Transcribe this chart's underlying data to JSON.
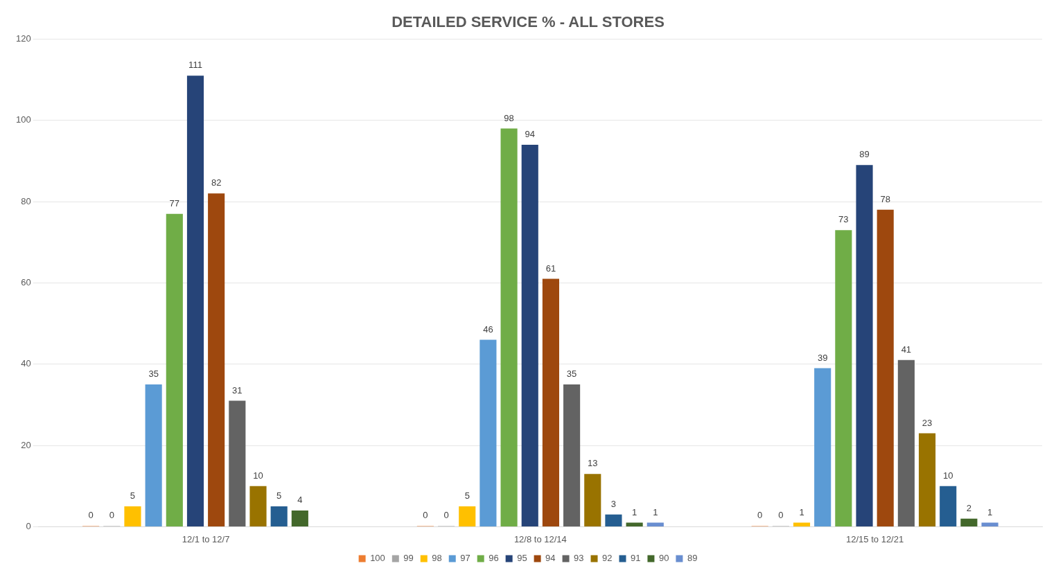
{
  "chart_data": {
    "type": "bar",
    "title": "DETAILED SERVICE % - ALL STORES",
    "categories": [
      "12/1 to 12/7",
      "12/8 to 12/14",
      "12/15 to 12/21"
    ],
    "series": [
      {
        "name": "100",
        "color": "#ed7d31",
        "values": [
          0,
          0,
          0
        ]
      },
      {
        "name": "99",
        "color": "#a5a5a5",
        "values": [
          0,
          0,
          0
        ]
      },
      {
        "name": "98",
        "color": "#ffc000",
        "values": [
          5,
          5,
          1
        ]
      },
      {
        "name": "97",
        "color": "#5b9bd5",
        "values": [
          35,
          46,
          39
        ]
      },
      {
        "name": "96",
        "color": "#70ad47",
        "values": [
          77,
          98,
          73
        ]
      },
      {
        "name": "95",
        "color": "#264478",
        "values": [
          111,
          94,
          89
        ]
      },
      {
        "name": "94",
        "color": "#9e480e",
        "values": [
          82,
          61,
          78
        ]
      },
      {
        "name": "93",
        "color": "#636363",
        "values": [
          31,
          35,
          41
        ]
      },
      {
        "name": "92",
        "color": "#997300",
        "values": [
          10,
          13,
          23
        ]
      },
      {
        "name": "91",
        "color": "#255e91",
        "values": [
          5,
          3,
          10
        ]
      },
      {
        "name": "90",
        "color": "#43682b",
        "values": [
          4,
          1,
          2
        ]
      },
      {
        "name": "89",
        "color": "#698ed0",
        "values": [
          null,
          1,
          1
        ]
      }
    ],
    "ylim": [
      0,
      120
    ],
    "yticks": [
      0,
      20,
      40,
      60,
      80,
      100,
      120
    ],
    "grid": "y",
    "legend": "bottom",
    "data_labels": true
  }
}
